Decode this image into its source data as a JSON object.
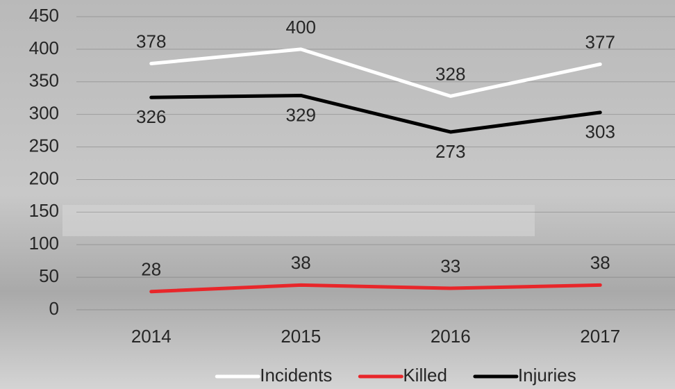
{
  "chart_data": {
    "type": "line",
    "categories": [
      "2014",
      "2015",
      "2016",
      "2017"
    ],
    "series": [
      {
        "name": "Incidents",
        "color": "#ffffff",
        "values": [
          378,
          400,
          328,
          377
        ]
      },
      {
        "name": "Killed",
        "color": "#e8262a",
        "values": [
          28,
          38,
          33,
          38
        ]
      },
      {
        "name": "Injuries",
        "color": "#000000",
        "values": [
          326,
          329,
          273,
          303
        ]
      }
    ],
    "ylim": [
      0,
      450
    ],
    "yticks": [
      0,
      50,
      100,
      150,
      200,
      250,
      300,
      350,
      400,
      450
    ],
    "grid": true,
    "legend": "bottom"
  }
}
